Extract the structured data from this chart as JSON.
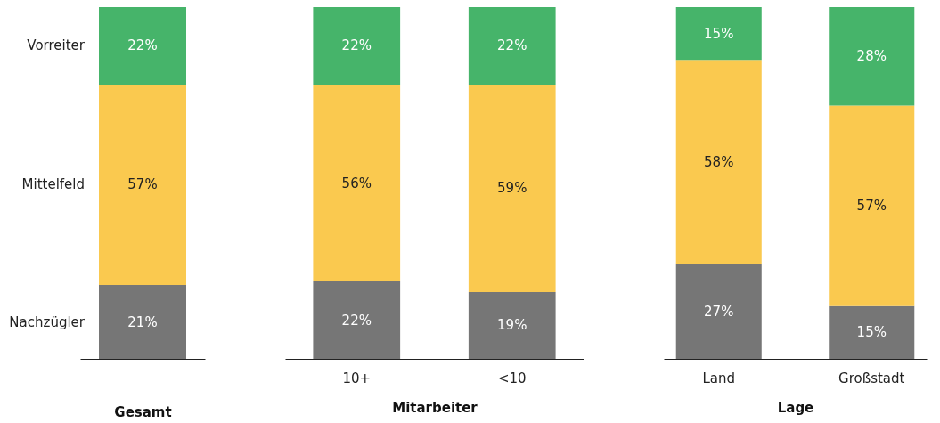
{
  "chart_data": [
    {
      "type": "bar",
      "stacked": true,
      "xlabel": "Gesamt",
      "categories": [
        null
      ],
      "ylim": [
        0,
        100
      ],
      "tick_labels": false,
      "series": [
        {
          "name": "Nachzügler",
          "color": "#767676",
          "values": [
            21
          ],
          "value_labels": [
            "21%"
          ]
        },
        {
          "name": "Mittelfeld",
          "color": "#fac94f",
          "values": [
            57
          ],
          "value_labels": [
            "57%"
          ]
        },
        {
          "name": "Vorreiter",
          "color": "#46b46a",
          "values": [
            22
          ],
          "value_labels": [
            "22%"
          ]
        }
      ]
    },
    {
      "type": "bar",
      "stacked": true,
      "xlabel": "Mitarbeiter",
      "categories": [
        "10+",
        "<10"
      ],
      "ylim": [
        0,
        100
      ],
      "tick_labels": "x",
      "series": [
        {
          "color": "#767676",
          "values": [
            22,
            19
          ],
          "value_labels": [
            "22%",
            "19%"
          ]
        },
        {
          "color": "#fac94f",
          "values": [
            56,
            59
          ],
          "value_labels": [
            "56%",
            "59%"
          ]
        },
        {
          "color": "#46b46a",
          "values": [
            22,
            22
          ],
          "value_labels": [
            "22%",
            "22%"
          ]
        }
      ]
    },
    {
      "type": "bar",
      "stacked": true,
      "xlabel": "Lage",
      "categories": [
        "Land",
        "Großstadt"
      ],
      "ylim": [
        0,
        100
      ],
      "tick_labels": "x",
      "series": [
        {
          "color": "#767676",
          "values": [
            27,
            15
          ],
          "value_labels": [
            "27%",
            "15%"
          ]
        },
        {
          "color": "#fac94f",
          "values": [
            58,
            57
          ],
          "value_labels": [
            "58%",
            "57%"
          ]
        },
        {
          "color": "#46b46a",
          "values": [
            15,
            28
          ],
          "value_labels": [
            "15%",
            "28%"
          ]
        }
      ]
    }
  ]
}
